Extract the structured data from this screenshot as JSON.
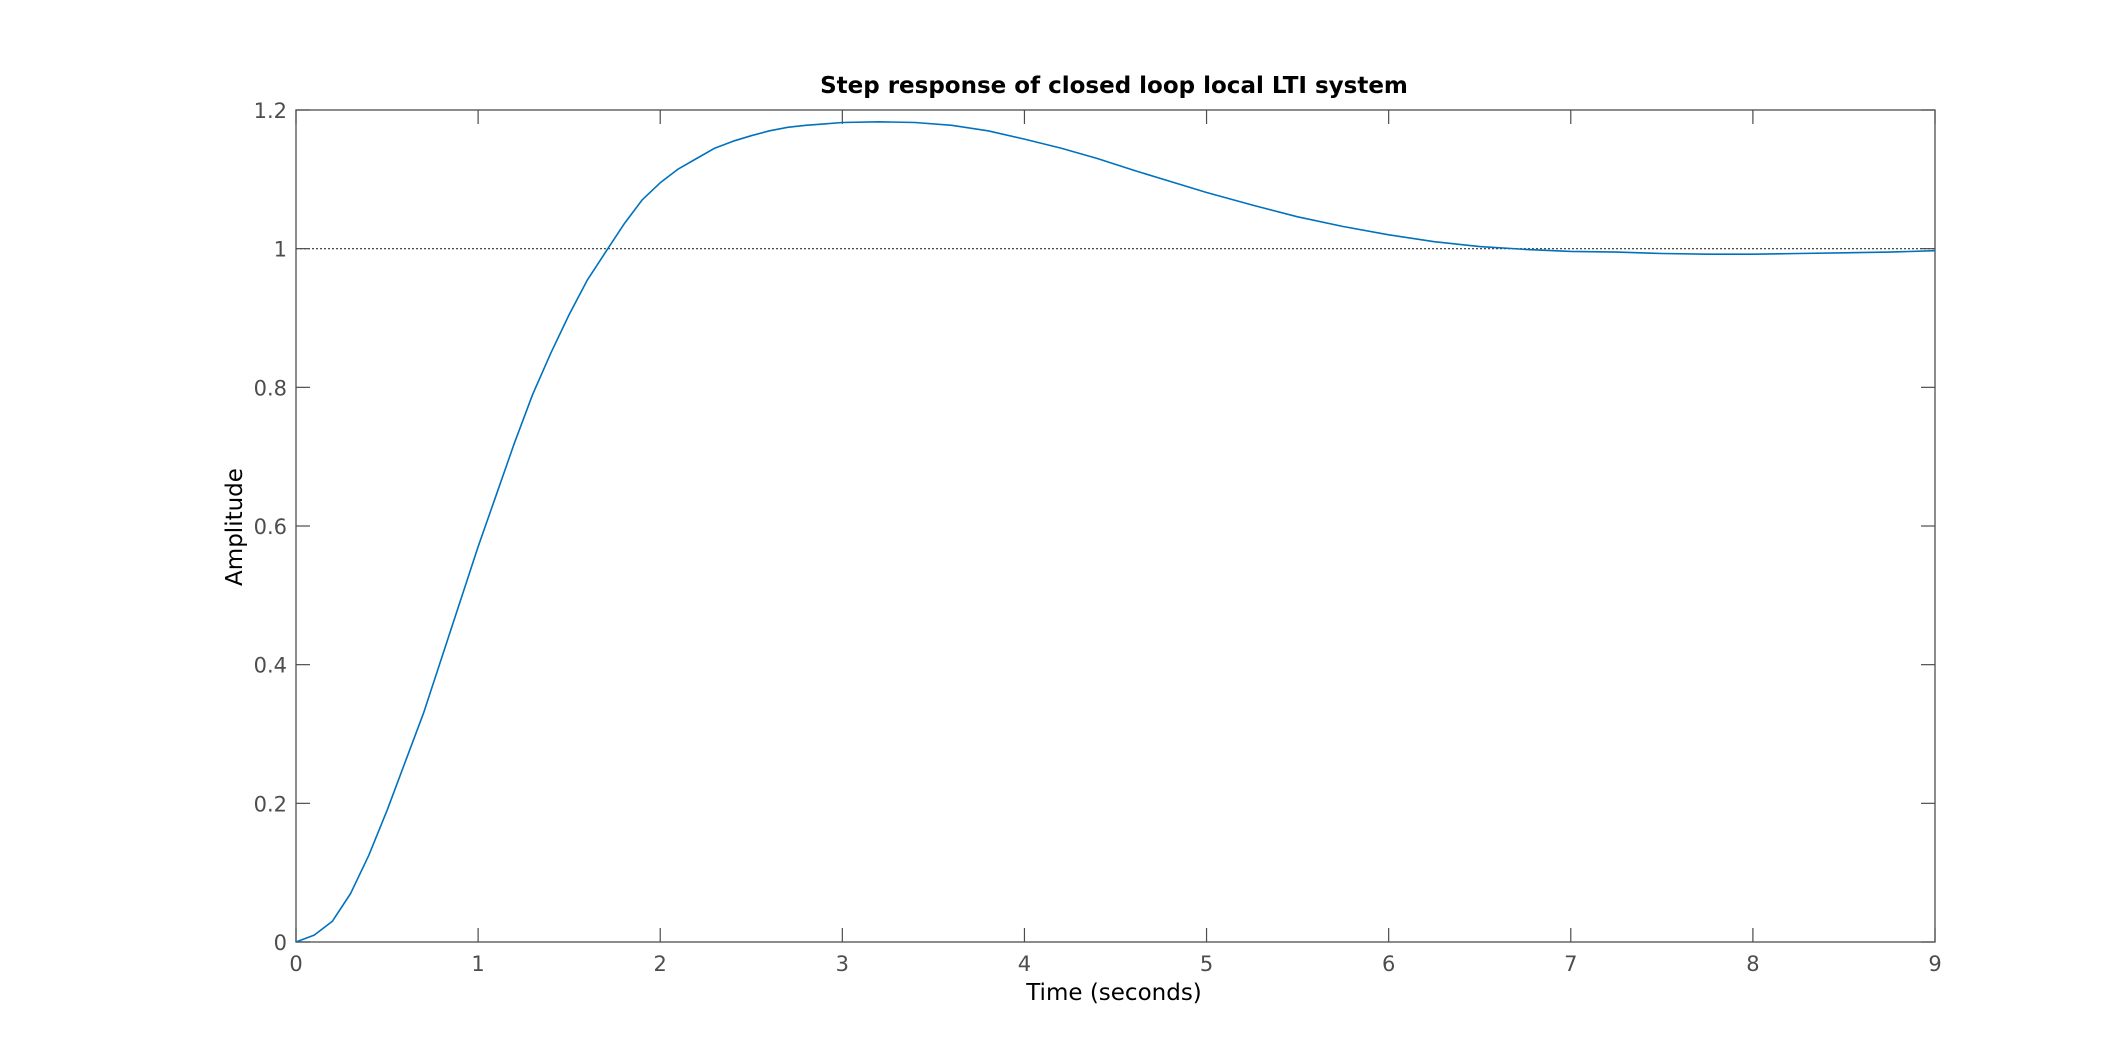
{
  "chart_data": {
    "type": "line",
    "title": "Step response of closed loop local LTI system",
    "xlabel": "Time (seconds)",
    "ylabel": "Amplitude",
    "xlim": [
      0,
      9
    ],
    "ylim": [
      0,
      1.2
    ],
    "xticks": [
      "0",
      "1",
      "2",
      "3",
      "4",
      "5",
      "6",
      "7",
      "8",
      "9"
    ],
    "yticks": [
      "0",
      "0.2",
      "0.4",
      "0.6",
      "0.8",
      "1",
      "1.2"
    ],
    "grid": false,
    "reference_line": 1,
    "colors": {
      "line": "#0072bd",
      "axes": "#4d4d4d",
      "reference": "#333333"
    },
    "series": [
      {
        "x": [
          0,
          0.1,
          0.2,
          0.3,
          0.4,
          0.5,
          0.6,
          0.7,
          0.8,
          0.9,
          1.0,
          1.1,
          1.2,
          1.3,
          1.4,
          1.5,
          1.6,
          1.7,
          1.8,
          1.9,
          2.0,
          2.1,
          2.2,
          2.3,
          2.4,
          2.5,
          2.6,
          2.7,
          2.8,
          2.9,
          3.0,
          3.2,
          3.4,
          3.6,
          3.8,
          4.0,
          4.2,
          4.4,
          4.6,
          4.8,
          5.0,
          5.25,
          5.5,
          5.75,
          6.0,
          6.25,
          6.5,
          6.75,
          7.0,
          7.25,
          7.5,
          7.75,
          8.0,
          8.25,
          8.5,
          8.75,
          9.0
        ],
        "y": [
          0,
          0.01,
          0.03,
          0.07,
          0.125,
          0.19,
          0.26,
          0.33,
          0.41,
          0.49,
          0.57,
          0.645,
          0.72,
          0.79,
          0.85,
          0.905,
          0.955,
          0.995,
          1.035,
          1.07,
          1.095,
          1.115,
          1.13,
          1.145,
          1.155,
          1.163,
          1.17,
          1.175,
          1.178,
          1.18,
          1.182,
          1.183,
          1.182,
          1.178,
          1.17,
          1.158,
          1.145,
          1.13,
          1.113,
          1.097,
          1.081,
          1.063,
          1.046,
          1.032,
          1.02,
          1.01,
          1.003,
          0.999,
          0.996,
          0.995,
          0.993,
          0.992,
          0.992,
          0.993,
          0.994,
          0.995,
          0.997
        ]
      }
    ]
  }
}
